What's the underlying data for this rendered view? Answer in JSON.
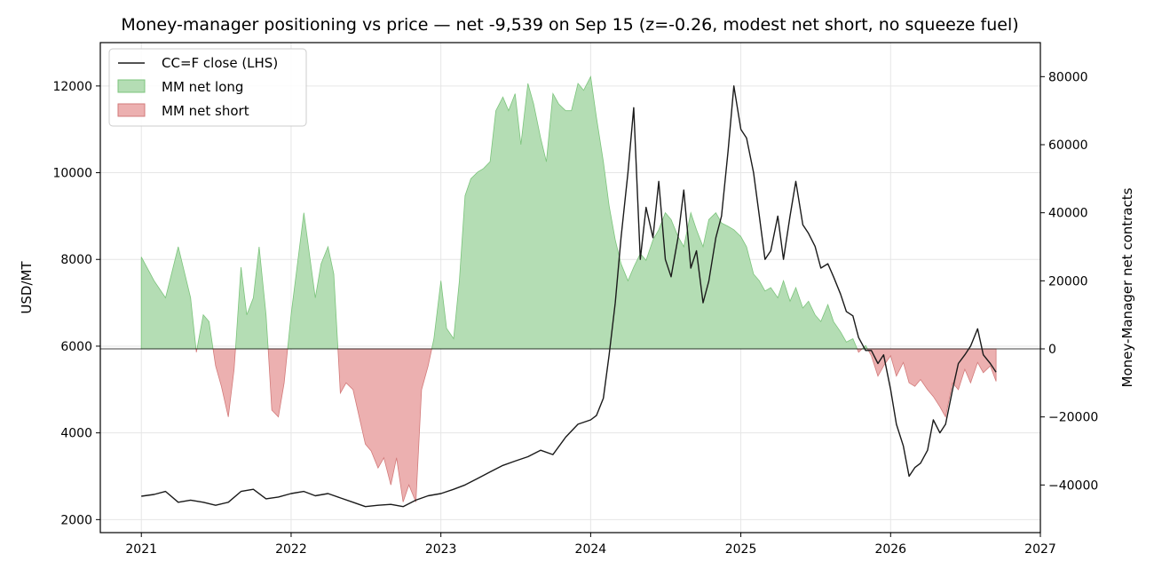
{
  "chart_data": {
    "type": "line",
    "title": "Money-manager positioning vs price — net -9,539 on Sep 15 (z=-0.26, modest net short, no squeeze fuel)",
    "ylabel_left": "USD/MT",
    "ylabel_right": "Money-Manager net contracts",
    "xlabel": "",
    "x_ticks": [
      "2021",
      "2022",
      "2023",
      "2024",
      "2025",
      "2026",
      "2027"
    ],
    "y_left_ticks": [
      "2000",
      "4000",
      "6000",
      "8000",
      "10000",
      "12000"
    ],
    "y_right_ticks": [
      "−40000",
      "−20000",
      "0",
      "20000",
      "40000",
      "60000",
      "80000"
    ],
    "y_left_lim": [
      1700,
      13000
    ],
    "y_right_lim": [
      -54000,
      90000
    ],
    "x_lim": [
      "2020-09-23",
      "2027-01-01"
    ],
    "grid": true,
    "legend_position": "top-left",
    "colors": {
      "price": "#1a1a1a",
      "net_long_fill": "#b4ddb4",
      "net_long_edge": "#7cc47c",
      "net_short_fill": "#ecb0b0",
      "net_short_edge": "#d27a7a"
    },
    "series": [
      {
        "name": "CC=F close (LHS)",
        "axis": "left",
        "kind": "line",
        "points": [
          [
            "2021-01-01",
            2540
          ],
          [
            "2021-02-01",
            2580
          ],
          [
            "2021-03-01",
            2650
          ],
          [
            "2021-04-01",
            2400
          ],
          [
            "2021-05-01",
            2450
          ],
          [
            "2021-06-01",
            2400
          ],
          [
            "2021-07-01",
            2330
          ],
          [
            "2021-08-01",
            2400
          ],
          [
            "2021-09-01",
            2650
          ],
          [
            "2021-10-01",
            2700
          ],
          [
            "2021-11-01",
            2480
          ],
          [
            "2021-12-01",
            2520
          ],
          [
            "2022-01-01",
            2600
          ],
          [
            "2022-02-01",
            2650
          ],
          [
            "2022-03-01",
            2550
          ],
          [
            "2022-04-01",
            2600
          ],
          [
            "2022-05-01",
            2500
          ],
          [
            "2022-06-01",
            2400
          ],
          [
            "2022-07-01",
            2300
          ],
          [
            "2022-08-01",
            2330
          ],
          [
            "2022-09-01",
            2350
          ],
          [
            "2022-10-01",
            2300
          ],
          [
            "2022-11-01",
            2450
          ],
          [
            "2022-12-01",
            2550
          ],
          [
            "2023-01-01",
            2600
          ],
          [
            "2023-02-01",
            2700
          ],
          [
            "2023-03-01",
            2800
          ],
          [
            "2023-04-01",
            2950
          ],
          [
            "2023-05-01",
            3100
          ],
          [
            "2023-06-01",
            3250
          ],
          [
            "2023-07-01",
            3350
          ],
          [
            "2023-08-01",
            3450
          ],
          [
            "2023-09-01",
            3600
          ],
          [
            "2023-10-01",
            3500
          ],
          [
            "2023-11-01",
            3900
          ],
          [
            "2023-12-01",
            4200
          ],
          [
            "2024-01-01",
            4300
          ],
          [
            "2024-01-15",
            4400
          ],
          [
            "2024-02-01",
            4800
          ],
          [
            "2024-02-15",
            5800
          ],
          [
            "2024-03-01",
            7000
          ],
          [
            "2024-03-15",
            8500
          ],
          [
            "2024-04-01",
            10000
          ],
          [
            "2024-04-15",
            11500
          ],
          [
            "2024-05-01",
            8000
          ],
          [
            "2024-05-15",
            9200
          ],
          [
            "2024-06-01",
            8500
          ],
          [
            "2024-06-15",
            9800
          ],
          [
            "2024-07-01",
            8000
          ],
          [
            "2024-07-15",
            7600
          ],
          [
            "2024-08-01",
            8500
          ],
          [
            "2024-08-15",
            9600
          ],
          [
            "2024-09-01",
            7800
          ],
          [
            "2024-09-15",
            8200
          ],
          [
            "2024-10-01",
            7000
          ],
          [
            "2024-10-15",
            7500
          ],
          [
            "2024-11-01",
            8500
          ],
          [
            "2024-11-15",
            9000
          ],
          [
            "2024-12-01",
            10500
          ],
          [
            "2024-12-15",
            12000
          ],
          [
            "2025-01-01",
            11000
          ],
          [
            "2025-01-15",
            10800
          ],
          [
            "2025-02-01",
            10000
          ],
          [
            "2025-02-15",
            9000
          ],
          [
            "2025-03-01",
            8000
          ],
          [
            "2025-03-15",
            8200
          ],
          [
            "2025-04-01",
            9000
          ],
          [
            "2025-04-15",
            8000
          ],
          [
            "2025-05-01",
            9000
          ],
          [
            "2025-05-15",
            9800
          ],
          [
            "2025-06-01",
            8800
          ],
          [
            "2025-06-15",
            8600
          ],
          [
            "2025-07-01",
            8300
          ],
          [
            "2025-07-15",
            7800
          ],
          [
            "2025-08-01",
            7900
          ],
          [
            "2025-08-15",
            7600
          ],
          [
            "2025-09-01",
            7200
          ],
          [
            "2025-09-15",
            6800
          ],
          [
            "2025-10-01",
            6700
          ],
          [
            "2025-10-15",
            6200
          ],
          [
            "2025-11-01",
            5900
          ],
          [
            "2025-11-15",
            5900
          ],
          [
            "2025-12-01",
            5600
          ],
          [
            "2025-12-15",
            5800
          ],
          [
            "2026-01-01",
            5000
          ],
          [
            "2026-01-15",
            4200
          ],
          [
            "2026-02-01",
            3700
          ],
          [
            "2026-02-15",
            3000
          ],
          [
            "2026-03-01",
            3200
          ],
          [
            "2026-03-15",
            3300
          ],
          [
            "2026-04-01",
            3600
          ],
          [
            "2026-04-15",
            4300
          ],
          [
            "2026-05-01",
            4000
          ],
          [
            "2026-05-15",
            4200
          ],
          [
            "2026-06-01",
            5000
          ],
          [
            "2026-06-15",
            5600
          ],
          [
            "2026-07-01",
            5800
          ],
          [
            "2026-07-15",
            6000
          ],
          [
            "2026-08-01",
            6400
          ],
          [
            "2026-08-15",
            5800
          ],
          [
            "2026-09-01",
            5600
          ],
          [
            "2026-09-15",
            5400
          ]
        ]
      },
      {
        "name": "MM net long",
        "axis": "right",
        "kind": "area-positive"
      },
      {
        "name": "MM net short",
        "axis": "right",
        "kind": "area-negative"
      }
    ],
    "net_positioning": [
      [
        "2021-01-01",
        27000
      ],
      [
        "2021-02-01",
        20000
      ],
      [
        "2021-03-01",
        15000
      ],
      [
        "2021-04-01",
        30000
      ],
      [
        "2021-04-15",
        23000
      ],
      [
        "2021-05-01",
        15000
      ],
      [
        "2021-05-15",
        -1000
      ],
      [
        "2021-06-01",
        10000
      ],
      [
        "2021-06-15",
        8000
      ],
      [
        "2021-07-01",
        -5000
      ],
      [
        "2021-07-15",
        -11000
      ],
      [
        "2021-08-01",
        -20000
      ],
      [
        "2021-08-15",
        -6000
      ],
      [
        "2021-09-01",
        24000
      ],
      [
        "2021-09-15",
        10000
      ],
      [
        "2021-10-01",
        15000
      ],
      [
        "2021-10-15",
        30000
      ],
      [
        "2021-11-01",
        10000
      ],
      [
        "2021-11-15",
        -18000
      ],
      [
        "2021-12-01",
        -20000
      ],
      [
        "2021-12-15",
        -10000
      ],
      [
        "2022-01-01",
        10000
      ],
      [
        "2022-02-01",
        40000
      ],
      [
        "2022-03-01",
        15000
      ],
      [
        "2022-03-15",
        25000
      ],
      [
        "2022-04-01",
        30000
      ],
      [
        "2022-04-15",
        22000
      ],
      [
        "2022-05-01",
        -13000
      ],
      [
        "2022-05-15",
        -10000
      ],
      [
        "2022-06-01",
        -12000
      ],
      [
        "2022-07-01",
        -28000
      ],
      [
        "2022-07-15",
        -30000
      ],
      [
        "2022-08-01",
        -35000
      ],
      [
        "2022-08-15",
        -32000
      ],
      [
        "2022-09-01",
        -40000
      ],
      [
        "2022-09-15",
        -32000
      ],
      [
        "2022-10-01",
        -45000
      ],
      [
        "2022-10-15",
        -40000
      ],
      [
        "2022-11-01",
        -45000
      ],
      [
        "2022-11-15",
        -12000
      ],
      [
        "2022-12-01",
        -5000
      ],
      [
        "2022-12-15",
        3000
      ],
      [
        "2023-01-01",
        20000
      ],
      [
        "2023-01-15",
        6000
      ],
      [
        "2023-02-01",
        3000
      ],
      [
        "2023-02-15",
        20000
      ],
      [
        "2023-03-01",
        45000
      ],
      [
        "2023-03-15",
        50000
      ],
      [
        "2023-04-01",
        52000
      ],
      [
        "2023-04-15",
        53000
      ],
      [
        "2023-05-01",
        55000
      ],
      [
        "2023-05-15",
        70000
      ],
      [
        "2023-06-01",
        74000
      ],
      [
        "2023-06-15",
        70000
      ],
      [
        "2023-07-01",
        75000
      ],
      [
        "2023-07-15",
        60000
      ],
      [
        "2023-08-01",
        78000
      ],
      [
        "2023-08-15",
        72000
      ],
      [
        "2023-09-01",
        62000
      ],
      [
        "2023-09-15",
        55000
      ],
      [
        "2023-10-01",
        75000
      ],
      [
        "2023-10-15",
        72000
      ],
      [
        "2023-11-01",
        70000
      ],
      [
        "2023-11-15",
        70000
      ],
      [
        "2023-12-01",
        78000
      ],
      [
        "2023-12-15",
        76000
      ],
      [
        "2024-01-01",
        80000
      ],
      [
        "2024-01-15",
        68000
      ],
      [
        "2024-02-01",
        55000
      ],
      [
        "2024-02-15",
        42000
      ],
      [
        "2024-03-01",
        32000
      ],
      [
        "2024-03-15",
        25000
      ],
      [
        "2024-04-01",
        20000
      ],
      [
        "2024-04-15",
        24000
      ],
      [
        "2024-05-01",
        28000
      ],
      [
        "2024-05-15",
        26000
      ],
      [
        "2024-06-01",
        32000
      ],
      [
        "2024-06-15",
        35000
      ],
      [
        "2024-07-01",
        40000
      ],
      [
        "2024-07-15",
        38000
      ],
      [
        "2024-08-01",
        33000
      ],
      [
        "2024-08-15",
        30000
      ],
      [
        "2024-09-01",
        40000
      ],
      [
        "2024-09-15",
        35000
      ],
      [
        "2024-10-01",
        30000
      ],
      [
        "2024-10-15",
        38000
      ],
      [
        "2024-11-01",
        40000
      ],
      [
        "2024-11-15",
        37000
      ],
      [
        "2024-12-01",
        36000
      ],
      [
        "2024-12-15",
        35000
      ],
      [
        "2025-01-01",
        33000
      ],
      [
        "2025-01-15",
        30000
      ],
      [
        "2025-02-01",
        22000
      ],
      [
        "2025-02-15",
        20000
      ],
      [
        "2025-03-01",
        17000
      ],
      [
        "2025-03-15",
        18000
      ],
      [
        "2025-04-01",
        15000
      ],
      [
        "2025-04-15",
        20000
      ],
      [
        "2025-05-01",
        14000
      ],
      [
        "2025-05-15",
        18000
      ],
      [
        "2025-06-01",
        12000
      ],
      [
        "2025-06-15",
        14000
      ],
      [
        "2025-07-01",
        10000
      ],
      [
        "2025-07-15",
        8000
      ],
      [
        "2025-08-01",
        13000
      ],
      [
        "2025-08-15",
        8000
      ],
      [
        "2025-09-01",
        5000
      ],
      [
        "2025-09-15",
        2000
      ],
      [
        "2025-10-01",
        3000
      ],
      [
        "2025-10-15",
        -1000
      ],
      [
        "2025-11-01",
        1000
      ],
      [
        "2025-11-15",
        -2000
      ],
      [
        "2025-12-01",
        -8000
      ],
      [
        "2025-12-15",
        -5000
      ],
      [
        "2026-01-01",
        -2000
      ],
      [
        "2026-01-15",
        -8000
      ],
      [
        "2026-02-01",
        -4000
      ],
      [
        "2026-02-15",
        -10000
      ],
      [
        "2026-03-01",
        -11000
      ],
      [
        "2026-03-15",
        -9000
      ],
      [
        "2026-04-01",
        -12000
      ],
      [
        "2026-04-15",
        -14000
      ],
      [
        "2026-05-01",
        -17000
      ],
      [
        "2026-05-15",
        -20000
      ],
      [
        "2026-06-01",
        -10000
      ],
      [
        "2026-06-15",
        -12000
      ],
      [
        "2026-07-01",
        -6000
      ],
      [
        "2026-07-15",
        -10000
      ],
      [
        "2026-08-01",
        -4000
      ],
      [
        "2026-08-15",
        -7000
      ],
      [
        "2026-09-01",
        -5000
      ],
      [
        "2026-09-15",
        -9539
      ]
    ]
  }
}
